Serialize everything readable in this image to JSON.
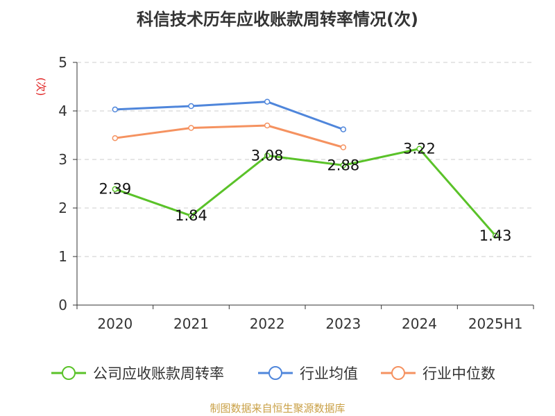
{
  "chart_data": {
    "type": "line",
    "title": "科信技术历年应收账款周转率情况(次)",
    "ylabel": "(次)",
    "categories": [
      "2020",
      "2021",
      "2022",
      "2023",
      "2024",
      "2025H1"
    ],
    "ylim": [
      0,
      5
    ],
    "yticks": [
      "0",
      "1",
      "2",
      "3",
      "4",
      "5"
    ],
    "grid": true,
    "legend_position": "bottom",
    "series": [
      {
        "name": "公司应收账款周转率",
        "color": "#5ac229",
        "values": [
          2.39,
          1.84,
          3.08,
          2.88,
          3.22,
          1.43
        ],
        "labels": [
          "2.39",
          "1.84",
          "3.08",
          "2.88",
          "3.22",
          "1.43"
        ]
      },
      {
        "name": "行业均值",
        "color": "#4f86db",
        "values": [
          4.03,
          4.1,
          4.19,
          3.62,
          null,
          null
        ]
      },
      {
        "name": "行业中位数",
        "color": "#f59260",
        "values": [
          3.44,
          3.65,
          3.7,
          3.25,
          null,
          null
        ]
      }
    ]
  },
  "source": "制图数据来自恒生聚源数据库"
}
